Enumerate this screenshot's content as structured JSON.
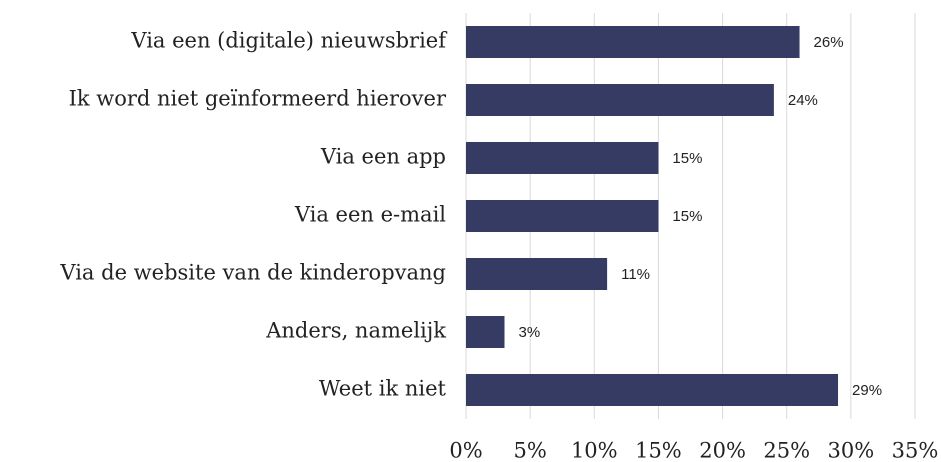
{
  "chart_data": {
    "type": "bar",
    "orientation": "horizontal",
    "categories": [
      "Via een (digitale) nieuwsbrief",
      "Ik word niet geïnformeerd hierover",
      "Via een app",
      "Via een e-mail",
      "Via de website van de kinderopvang",
      "Anders, namelijk",
      "Weet ik niet"
    ],
    "values": [
      26,
      24,
      15,
      15,
      11,
      3,
      29
    ],
    "value_labels": [
      "26%",
      "24%",
      "15%",
      "15%",
      "11%",
      "3%",
      "29%"
    ],
    "color": "#363b64",
    "xlim": [
      0,
      35
    ],
    "xticks": [
      {
        "value": 0,
        "label": "0%"
      },
      {
        "value": 5,
        "label": "5%"
      },
      {
        "value": 10,
        "label": "10%"
      },
      {
        "value": 15,
        "label": "15%"
      },
      {
        "value": 20,
        "label": "20%"
      },
      {
        "value": 25,
        "label": "25%"
      },
      {
        "value": 30,
        "label": "30%"
      },
      {
        "value": 35,
        "label": "35%"
      }
    ],
    "grid": true
  }
}
